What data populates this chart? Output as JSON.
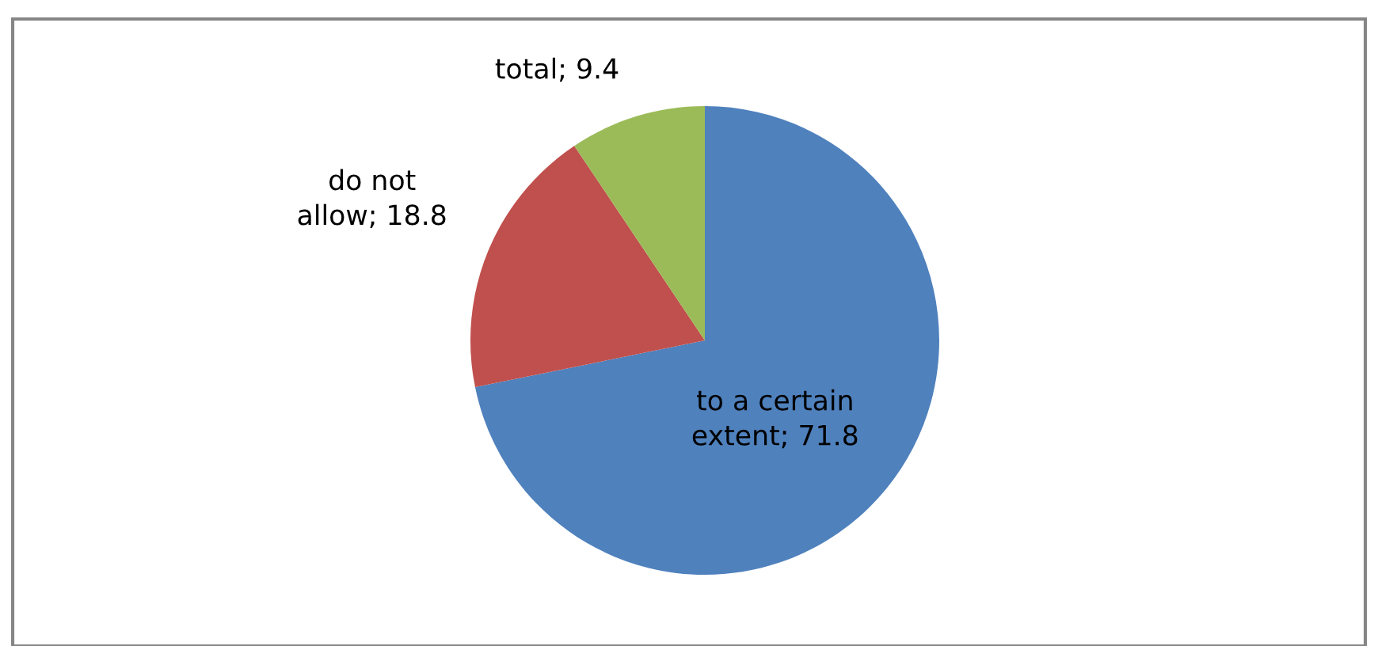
{
  "chart_data": {
    "type": "pie",
    "categories": [
      "to a certain extent",
      "do not allow",
      "total"
    ],
    "values": [
      71.8,
      18.8,
      9.4
    ],
    "colors": [
      "#4f81bd",
      "#c0504d",
      "#9bbb59"
    ],
    "value_labels": [
      "71.8",
      "18.8",
      "9.4"
    ],
    "legend": false
  }
}
